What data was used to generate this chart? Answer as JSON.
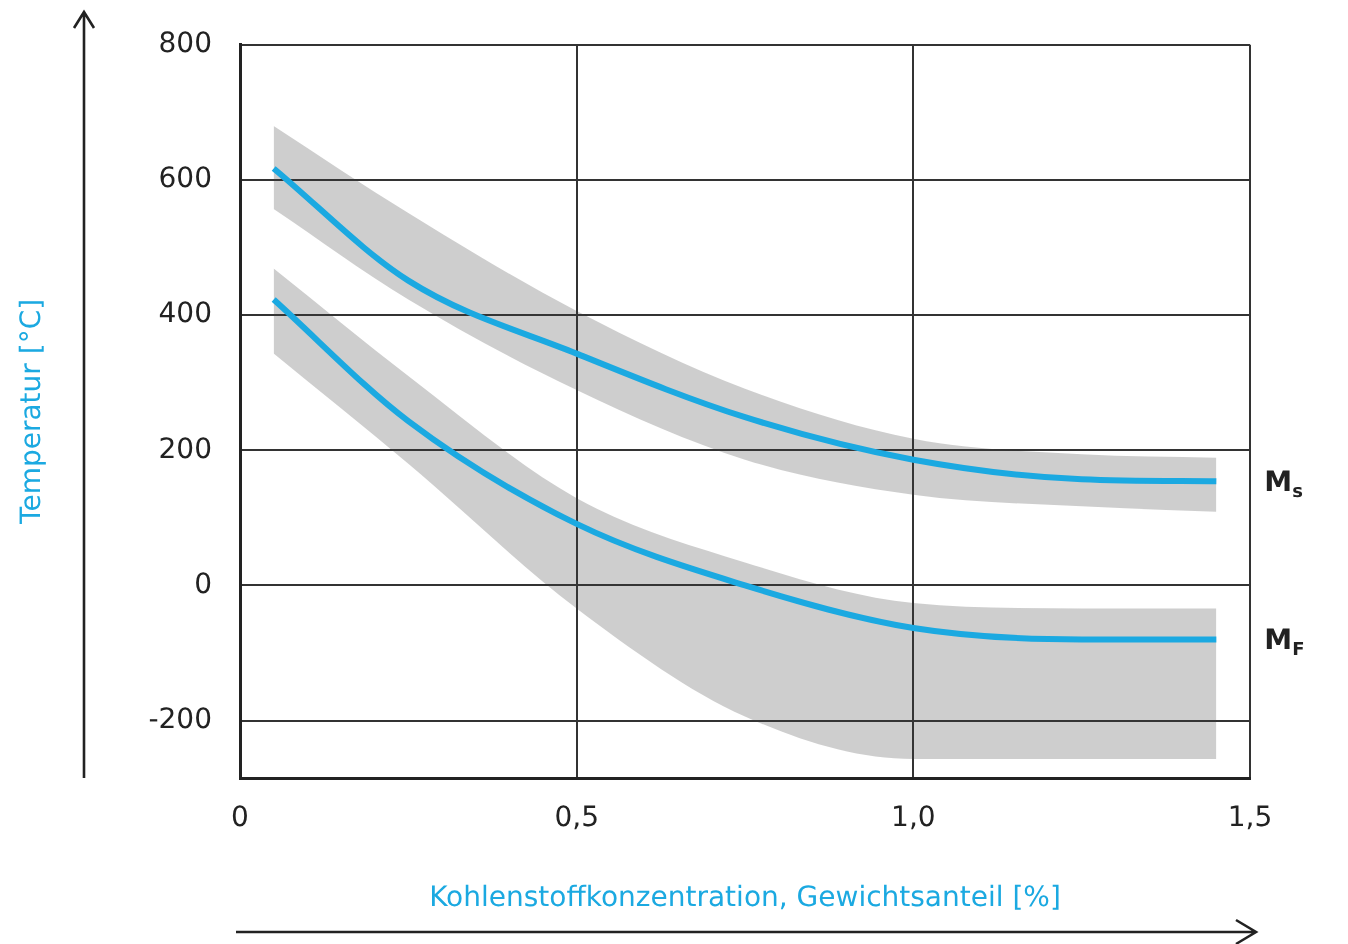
{
  "chart_data": {
    "type": "line",
    "xlabel": "Kohlenstoffkonzentration, Gewichtsanteil [%]",
    "ylabel": "Temperatur [°C]",
    "xlim": [
      0,
      1.5
    ],
    "xticks": [
      0,
      {
        "value": 0.5,
        "label": "0,5"
      },
      {
        "value": 1,
        "label": "1,0"
      },
      {
        "value": 1.5,
        "label": "1,5"
      }
    ],
    "ylim": [
      -285,
      800
    ],
    "yticks": [
      -200,
      0,
      200,
      400,
      600,
      800
    ],
    "grid": true,
    "legend": false,
    "marker": "none",
    "line_style": "solid",
    "series": [
      {
        "name": "M$_{s}$",
        "color": "#1ba9e1",
        "x": [
          0.05,
          0.25,
          0.5,
          0.75,
          1.0,
          1.25,
          1.45
        ],
        "values": [
          617,
          451,
          343,
          249,
          186,
          157,
          154
        ],
        "lower": [
          557,
          423,
          289,
          186,
          134,
          117,
          109
        ],
        "upper": [
          680,
          551,
          406,
          291,
          217,
          194,
          189
        ]
      },
      {
        "name": "M$_{F}$",
        "color": "#1ba9e1",
        "x": [
          0.05,
          0.25,
          0.5,
          0.75,
          1.0,
          1.25,
          1.45
        ],
        "values": [
          423,
          243,
          91,
          0,
          -63,
          -80,
          -80
        ],
        "lower": [
          343,
          180,
          -34,
          -194,
          -257,
          -257,
          -257
        ],
        "upper": [
          469,
          310,
          129,
          34,
          -26,
          -34,
          -34
        ]
      }
    ]
  }
}
